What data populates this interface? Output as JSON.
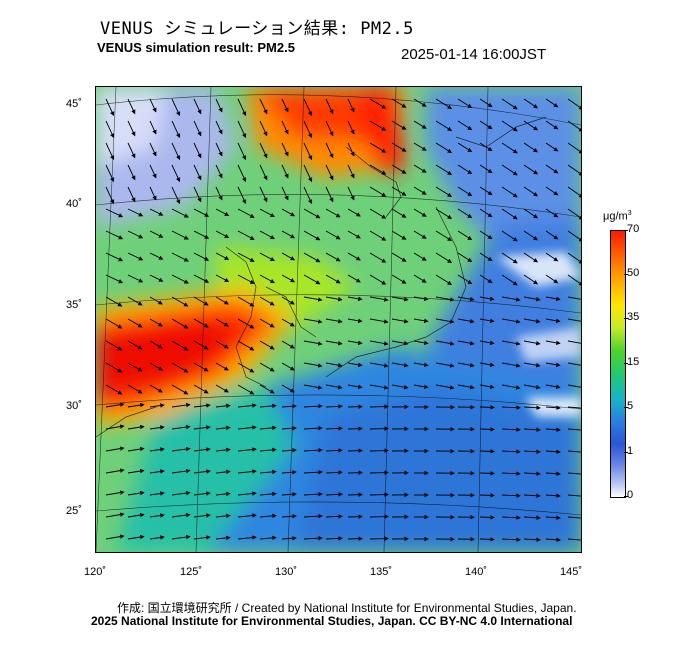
{
  "title_ja": "VENUS シミュレーション結果: PM2.5",
  "title_en": "VENUS simulation result: PM2.5",
  "timestamp": "2025-01-14 16:00JST",
  "map": {
    "lat_labels": [
      "45˚",
      "40˚",
      "35˚",
      "30˚",
      "25˚"
    ],
    "lon_labels": [
      "120˚",
      "125˚",
      "130˚",
      "135˚",
      "140˚",
      "145˚"
    ]
  },
  "colorbar": {
    "unit": "μg/m",
    "unit_sup": "3",
    "ticks": [
      "70",
      "50",
      "35",
      "15",
      "5",
      "1",
      "0"
    ],
    "colors": {
      "high": "#ff1a00",
      "mid": "#ffa500",
      "moderate": "#4ed32c",
      "low": "#2b7be0",
      "zero": "#ffffff"
    }
  },
  "credit": "作成: 国立環境研究所 / Created by National Institute for Environmental Studies, Japan.",
  "license": "2025 National Institute for Environmental Studies, Japan. CC BY-NC 4.0 International"
}
